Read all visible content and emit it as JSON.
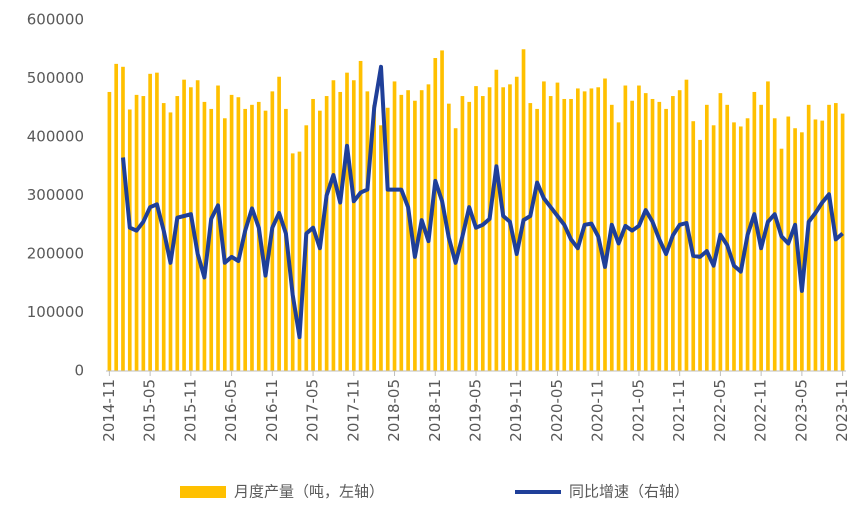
{
  "chart_data": {
    "type": "bar_line",
    "categories": [
      "2014-11",
      null,
      null,
      null,
      null,
      null,
      "2015-05",
      null,
      null,
      null,
      null,
      null,
      "2015-11",
      null,
      null,
      null,
      null,
      null,
      "2016-05",
      null,
      null,
      null,
      null,
      null,
      "2016-11",
      null,
      null,
      null,
      null,
      null,
      "2017-05",
      null,
      null,
      null,
      null,
      null,
      "2017-11",
      null,
      null,
      null,
      null,
      null,
      "2018-05",
      null,
      null,
      null,
      null,
      null,
      "2018-11",
      null,
      null,
      null,
      null,
      null,
      "2019-05",
      null,
      null,
      null,
      null,
      null,
      "2019-11",
      null,
      null,
      null,
      null,
      null,
      "2020-05",
      null,
      null,
      null,
      null,
      null,
      "2020-11",
      null,
      null,
      null,
      null,
      null,
      "2021-05",
      null,
      null,
      null,
      null,
      null,
      "2021-11",
      null,
      null,
      null,
      null,
      null,
      "2022-05",
      null,
      null,
      null,
      null,
      null,
      "2022-11",
      null,
      null,
      null,
      null,
      null,
      "2023-05",
      null,
      null,
      null,
      null,
      null,
      "2023-11"
    ],
    "series": [
      {
        "name": "月度产量（吨，左轴）",
        "color": "#ffc000",
        "kind": "bar",
        "values": [
          477000,
          525000,
          520000,
          447000,
          472000,
          470000,
          508000,
          510000,
          458000,
          442000,
          470000,
          498000,
          485000,
          497000,
          460000,
          448000,
          488000,
          432000,
          472000,
          468000,
          448000,
          455000,
          460000,
          445000,
          478000,
          503000,
          448000,
          372000,
          375000,
          420000,
          465000,
          445000,
          470000,
          497000,
          477000,
          510000,
          497000,
          530000,
          478000,
          455000,
          420000,
          450000,
          495000,
          472000,
          480000,
          462000,
          480000,
          490000,
          535000,
          548000,
          457000,
          415000,
          470000,
          460000,
          487000,
          470000,
          485000,
          515000,
          485000,
          490000,
          503000,
          550000,
          458000,
          448000,
          495000,
          470000,
          493000,
          465000,
          465000,
          483000,
          478000,
          483000,
          485000,
          500000,
          455000,
          425000,
          488000,
          462000,
          488000,
          475000,
          465000,
          460000,
          448000,
          470000,
          480000,
          498000,
          427000,
          395000,
          455000,
          420000,
          475000,
          455000,
          425000,
          418000,
          432000,
          477000,
          455000,
          495000,
          432000,
          380000,
          435000,
          415000,
          408000,
          455000,
          430000,
          428000,
          455000,
          458000,
          440000
        ]
      },
      {
        "name": "同比增速（右轴）",
        "color": "#1f3f99",
        "kind": "line",
        "values": [
          null,
          null,
          365000,
          245000,
          240000,
          255000,
          280000,
          285000,
          240000,
          185000,
          262000,
          265000,
          268000,
          200000,
          160000,
          260000,
          283000,
          185000,
          195000,
          188000,
          240000,
          278000,
          245000,
          163000,
          245000,
          270000,
          235000,
          130000,
          58000,
          235000,
          245000,
          210000,
          300000,
          335000,
          288000,
          385000,
          290000,
          305000,
          310000,
          450000,
          520000,
          310000,
          310000,
          310000,
          280000,
          195000,
          258000,
          222000,
          325000,
          290000,
          228000,
          185000,
          230000,
          280000,
          245000,
          250000,
          260000,
          350000,
          265000,
          255000,
          200000,
          258000,
          265000,
          322000,
          295000,
          280000,
          265000,
          250000,
          225000,
          210000,
          250000,
          252000,
          230000,
          178000,
          250000,
          218000,
          248000,
          240000,
          248000,
          275000,
          255000,
          225000,
          200000,
          232000,
          250000,
          253000,
          197000,
          195000,
          205000,
          180000,
          233000,
          215000,
          180000,
          170000,
          233000,
          268000,
          210000,
          255000,
          268000,
          230000,
          218000,
          250000,
          137000,
          255000,
          270000,
          288000,
          302000,
          225000,
          235000
        ]
      }
    ],
    "ylim": [
      0,
      600000
    ],
    "yticks": [
      0,
      100000,
      200000,
      300000,
      400000,
      500000,
      600000
    ],
    "legend": "bottom"
  }
}
